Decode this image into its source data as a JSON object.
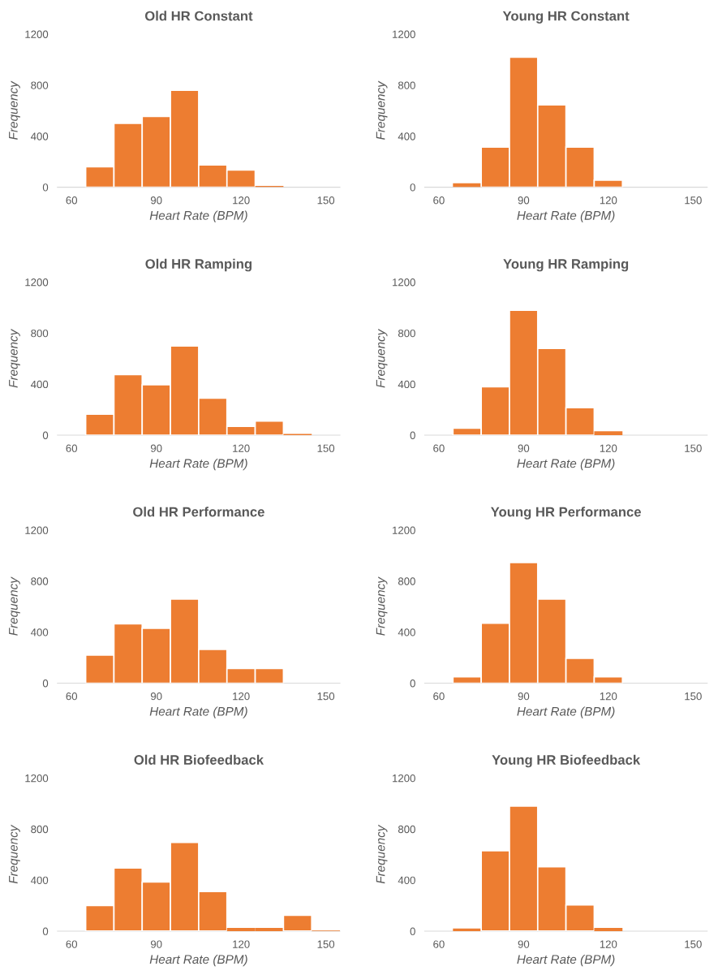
{
  "chart_data": [
    {
      "type": "histogram",
      "title": "Old HR Constant",
      "xlabel": "Heart Rate (BPM)",
      "ylabel": "Frequency",
      "color": "#ed7d31",
      "bins": [
        65,
        75,
        85,
        95,
        105,
        115,
        125,
        135,
        145,
        155
      ],
      "values": [
        160,
        500,
        555,
        760,
        175,
        135,
        10,
        0,
        0
      ],
      "xlim": [
        55,
        155
      ],
      "xticks": [
        60,
        90,
        120,
        150
      ],
      "ylim": [
        0,
        1200
      ],
      "yticks": [
        0,
        400,
        800,
        1200
      ]
    },
    {
      "type": "histogram",
      "title": "Young HR Constant",
      "xlabel": "Heart Rate (BPM)",
      "ylabel": "Frequency",
      "color": "#ed7d31",
      "bins": [
        65,
        75,
        85,
        95,
        105,
        115,
        125,
        135,
        145,
        155
      ],
      "values": [
        30,
        315,
        1020,
        645,
        315,
        55,
        0,
        0,
        0
      ],
      "xlim": [
        55,
        155
      ],
      "xticks": [
        60,
        90,
        120,
        150
      ],
      "ylim": [
        0,
        1200
      ],
      "yticks": [
        0,
        400,
        800,
        1200
      ]
    },
    {
      "type": "histogram",
      "title": "Old HR Ramping",
      "xlabel": "Heart Rate (BPM)",
      "ylabel": "Frequency",
      "color": "#ed7d31",
      "bins": [
        65,
        75,
        85,
        95,
        105,
        115,
        125,
        135,
        145,
        155
      ],
      "values": [
        165,
        475,
        395,
        700,
        290,
        70,
        110,
        10,
        0
      ],
      "xlim": [
        55,
        155
      ],
      "xticks": [
        60,
        90,
        120,
        150
      ],
      "ylim": [
        0,
        1200
      ],
      "yticks": [
        0,
        400,
        800,
        1200
      ]
    },
    {
      "type": "histogram",
      "title": "Young HR Ramping",
      "xlabel": "Heart Rate (BPM)",
      "ylabel": "Frequency",
      "color": "#ed7d31",
      "bins": [
        65,
        75,
        85,
        95,
        105,
        115,
        125,
        135,
        145,
        155
      ],
      "values": [
        55,
        380,
        980,
        680,
        215,
        30,
        0,
        0,
        0
      ],
      "xlim": [
        55,
        155
      ],
      "xticks": [
        60,
        90,
        120,
        150
      ],
      "ylim": [
        0,
        1200
      ],
      "yticks": [
        0,
        400,
        800,
        1200
      ]
    },
    {
      "type": "histogram",
      "title": "Old HR Performance",
      "xlabel": "Heart Rate (BPM)",
      "ylabel": "Frequency",
      "color": "#ed7d31",
      "bins": [
        65,
        75,
        85,
        95,
        105,
        115,
        125,
        135,
        145,
        155
      ],
      "values": [
        220,
        465,
        430,
        660,
        265,
        115,
        115,
        0,
        0
      ],
      "xlim": [
        55,
        155
      ],
      "xticks": [
        60,
        90,
        120,
        150
      ],
      "ylim": [
        0,
        1200
      ],
      "yticks": [
        0,
        400,
        800,
        1200
      ]
    },
    {
      "type": "histogram",
      "title": "Young HR Performance",
      "xlabel": "Heart Rate (BPM)",
      "ylabel": "Frequency",
      "color": "#ed7d31",
      "bins": [
        65,
        75,
        85,
        95,
        105,
        115,
        125,
        135,
        145,
        155
      ],
      "values": [
        50,
        470,
        945,
        660,
        195,
        50,
        0,
        0,
        0
      ],
      "xlim": [
        55,
        155
      ],
      "xticks": [
        60,
        90,
        120,
        150
      ],
      "ylim": [
        0,
        1200
      ],
      "yticks": [
        0,
        400,
        800,
        1200
      ]
    },
    {
      "type": "histogram",
      "title": "Old HR Biofeedback",
      "xlabel": "Heart Rate (BPM)",
      "ylabel": "Frequency",
      "color": "#ed7d31",
      "bins": [
        65,
        75,
        85,
        95,
        105,
        115,
        125,
        135,
        145,
        155
      ],
      "values": [
        200,
        495,
        385,
        695,
        310,
        25,
        25,
        125,
        5
      ],
      "xlim": [
        55,
        155
      ],
      "xticks": [
        60,
        90,
        120,
        150
      ],
      "ylim": [
        0,
        1200
      ],
      "yticks": [
        0,
        400,
        800,
        1200
      ]
    },
    {
      "type": "histogram",
      "title": "Young HR Biofeedback",
      "xlabel": "Heart Rate (BPM)",
      "ylabel": "Frequency",
      "color": "#ed7d31",
      "bins": [
        65,
        75,
        85,
        95,
        105,
        115,
        125,
        135,
        145,
        155
      ],
      "values": [
        20,
        630,
        980,
        505,
        205,
        25,
        0,
        0,
        0
      ],
      "xlim": [
        55,
        155
      ],
      "xticks": [
        60,
        90,
        120,
        150
      ],
      "ylim": [
        0,
        1200
      ],
      "yticks": [
        0,
        400,
        800,
        1200
      ]
    }
  ]
}
